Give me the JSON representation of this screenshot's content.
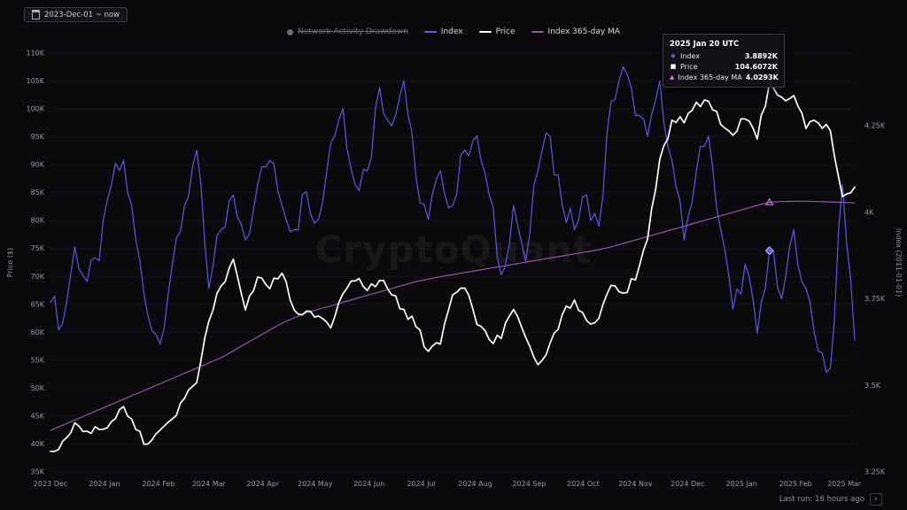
{
  "header": {
    "date_range": "2023-Dec-01 ~ now"
  },
  "legend": {
    "items": [
      {
        "label": "Network Activity Drawdown",
        "color": "#6b6b72",
        "marker": "circle",
        "disabled": true
      },
      {
        "label": "Index",
        "color": "#5e57e6",
        "marker": "line",
        "disabled": false
      },
      {
        "label": "Price",
        "color": "#ffffff",
        "marker": "line",
        "disabled": false
      },
      {
        "label": "Index 365-day MA",
        "color": "#9355a8",
        "marker": "line",
        "disabled": false
      }
    ]
  },
  "tooltip": {
    "title": "2025 Jan 20 UTC",
    "rows": [
      {
        "label": "Index",
        "value": "3.8892K",
        "marker": "diamond",
        "color": "#5e57e6"
      },
      {
        "label": "Price",
        "value": "104.6072K",
        "marker": "square",
        "color": "#ffffff"
      },
      {
        "label": "Index 365-day MA",
        "value": "4.0293K",
        "marker": "triangle",
        "color": "#c77bd6"
      }
    ]
  },
  "watermark": "CryptoQuant",
  "footer": {
    "last_run": "Last run: 16 hours ago"
  },
  "chart_data": {
    "type": "line",
    "title": "",
    "x_start": "2023-12-01",
    "x_interval_days": 7,
    "x_total_days": 462,
    "hover_index": 59,
    "hover_date": "2025 Jan 20 UTC",
    "draw_order": [
      2,
      0,
      1
    ],
    "left_axis": {
      "label": "Price ($)",
      "min": 35,
      "max": 110,
      "tick_values": [
        110,
        105,
        100,
        95,
        90,
        85,
        80,
        75,
        70,
        65,
        60,
        55,
        50,
        45,
        40,
        35
      ],
      "tick_labels": [
        "110K",
        "105K",
        "100K",
        "95K",
        "90K",
        "85K",
        "80K",
        "75K",
        "70K",
        "65K",
        "60K",
        "55K",
        "50K",
        "45K",
        "40K",
        "35K"
      ]
    },
    "right_axis": {
      "label": "Index (2011-01-01)",
      "min": 3.25,
      "max": 4.46,
      "tick_values": [
        4.25,
        4,
        3.75,
        3.5,
        3.25
      ],
      "tick_labels": [
        "4.25K",
        "4K",
        "3.75K",
        "3.5K",
        "3.25K"
      ]
    },
    "x_ticks": {
      "labels": [
        "2023 Dec",
        "2024 Jan",
        "2024 Feb",
        "2024 Mar",
        "2024 Apr",
        "2024 May",
        "2024 Jun",
        "2024 Jul",
        "2024 Aug",
        "2024 Sep",
        "2024 Oct",
        "2024 Nov",
        "2024 Dec",
        "2025 Jan",
        "2025 Feb",
        "2025 Mar"
      ],
      "day_offsets": [
        0,
        31,
        62,
        91,
        122,
        152,
        183,
        213,
        244,
        275,
        306,
        336,
        366,
        397,
        428,
        456
      ]
    },
    "series": [
      {
        "name": "Index",
        "axis": "right",
        "color": "#5e57e6",
        "width": 1.2,
        "jitter": 0.045,
        "values": [
          3.74,
          3.68,
          3.9,
          3.8,
          3.86,
          4.08,
          4.15,
          3.92,
          3.7,
          3.62,
          3.85,
          4.02,
          4.18,
          3.78,
          3.95,
          4.05,
          3.92,
          4.08,
          4.15,
          4.02,
          3.95,
          4.06,
          3.98,
          4.2,
          4.3,
          4.08,
          4.12,
          4.36,
          4.25,
          4.38,
          4.1,
          3.98,
          4.12,
          4.02,
          4.18,
          4.22,
          4.05,
          3.82,
          4.02,
          3.86,
          4.12,
          4.22,
          4.02,
          3.95,
          4.05,
          3.96,
          4.32,
          4.42,
          4.28,
          4.22,
          4.38,
          4.15,
          3.92,
          4.12,
          4.22,
          3.95,
          3.72,
          3.85,
          3.65,
          3.8892,
          3.75,
          3.95,
          3.78,
          3.6,
          3.55,
          4.08,
          3.63
        ]
      },
      {
        "name": "Price",
        "axis": "left",
        "color": "#ffffff",
        "width": 1.7,
        "jitter": 1.0,
        "values": [
          38.7,
          40.5,
          43.8,
          42.3,
          42.6,
          44.0,
          46.7,
          42.6,
          40.0,
          42.5,
          44.5,
          48.2,
          51.0,
          62.0,
          68.3,
          73.1,
          64.0,
          69.9,
          67.8,
          70.6,
          64.0,
          63.8,
          62.9,
          60.8,
          66.9,
          69.2,
          67.5,
          69.3,
          66.7,
          64.1,
          61.0,
          56.6,
          57.9,
          66.7,
          67.9,
          61.4,
          58.7,
          58.9,
          64.1,
          59.1,
          54.2,
          58.1,
          63.2,
          65.8,
          62.1,
          62.5,
          68.4,
          67.0,
          69.4,
          76.7,
          91.0,
          98.0,
          97.5,
          101.2,
          101.4,
          97.2,
          95.3,
          98.2,
          94.6,
          104.6072,
          102.1,
          102.4,
          96.5,
          97.5,
          96.1,
          84.3,
          86.0
        ]
      },
      {
        "name": "Index 365-day MA",
        "axis": "right",
        "color": "#9355a8",
        "width": 1.2,
        "jitter": 0,
        "values": [
          3.37,
          3.385,
          3.4,
          3.415,
          3.43,
          3.445,
          3.46,
          3.475,
          3.49,
          3.505,
          3.52,
          3.535,
          3.55,
          3.565,
          3.58,
          3.6,
          3.62,
          3.64,
          3.66,
          3.68,
          3.695,
          3.71,
          3.72,
          3.73,
          3.74,
          3.75,
          3.76,
          3.77,
          3.78,
          3.79,
          3.8,
          3.807,
          3.814,
          3.82,
          3.826,
          3.832,
          3.838,
          3.844,
          3.85,
          3.856,
          3.862,
          3.868,
          3.874,
          3.88,
          3.886,
          3.892,
          3.9,
          3.91,
          3.92,
          3.93,
          3.94,
          3.95,
          3.96,
          3.97,
          3.98,
          3.99,
          4.0,
          4.01,
          4.02,
          4.0293,
          4.031,
          4.032,
          4.032,
          4.031,
          4.03,
          4.029,
          4.027
        ]
      }
    ]
  }
}
